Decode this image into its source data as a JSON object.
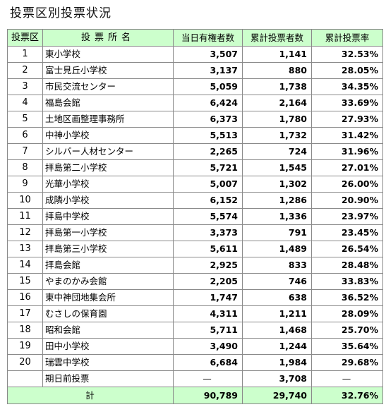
{
  "title": "投票区別投票状況",
  "headers": {
    "no": "投票区",
    "name": "投票所名",
    "registered": "当日有権者数",
    "voters": "累計投票者数",
    "rate": "累計投票率"
  },
  "rows": [
    {
      "no": "1",
      "name": "東小学校",
      "registered": "3,507",
      "voters": "1,141",
      "rate": "32.53%"
    },
    {
      "no": "2",
      "name": "富士見丘小学校",
      "registered": "3,137",
      "voters": "880",
      "rate": "28.05%"
    },
    {
      "no": "3",
      "name": "市民交流センター",
      "registered": "5,059",
      "voters": "1,738",
      "rate": "34.35%"
    },
    {
      "no": "4",
      "name": "福島会館",
      "registered": "6,424",
      "voters": "2,164",
      "rate": "33.69%"
    },
    {
      "no": "5",
      "name": "土地区画整理事務所",
      "registered": "6,373",
      "voters": "1,780",
      "rate": "27.93%"
    },
    {
      "no": "6",
      "name": "中神小学校",
      "registered": "5,513",
      "voters": "1,732",
      "rate": "31.42%"
    },
    {
      "no": "7",
      "name": "シルバー人材センター",
      "registered": "2,265",
      "voters": "724",
      "rate": "31.96%"
    },
    {
      "no": "8",
      "name": "拝島第二小学校",
      "registered": "5,721",
      "voters": "1,545",
      "rate": "27.01%"
    },
    {
      "no": "9",
      "name": "光華小学校",
      "registered": "5,007",
      "voters": "1,302",
      "rate": "26.00%"
    },
    {
      "no": "10",
      "name": "成隣小学校",
      "registered": "6,152",
      "voters": "1,286",
      "rate": "20.90%"
    },
    {
      "no": "11",
      "name": "拝島中学校",
      "registered": "5,574",
      "voters": "1,336",
      "rate": "23.97%"
    },
    {
      "no": "12",
      "name": "拝島第一小学校",
      "registered": "3,373",
      "voters": "791",
      "rate": "23.45%"
    },
    {
      "no": "13",
      "name": "拝島第三小学校",
      "registered": "5,611",
      "voters": "1,489",
      "rate": "26.54%"
    },
    {
      "no": "14",
      "name": "拝島会館",
      "registered": "2,925",
      "voters": "833",
      "rate": "28.48%"
    },
    {
      "no": "15",
      "name": "やまのかみ会館",
      "registered": "2,205",
      "voters": "746",
      "rate": "33.83%"
    },
    {
      "no": "16",
      "name": "東中神団地集会所",
      "registered": "1,747",
      "voters": "638",
      "rate": "36.52%"
    },
    {
      "no": "17",
      "name": "むさしの保育園",
      "registered": "4,311",
      "voters": "1,211",
      "rate": "28.09%"
    },
    {
      "no": "18",
      "name": "昭和会館",
      "registered": "5,711",
      "voters": "1,468",
      "rate": "25.70%"
    },
    {
      "no": "19",
      "name": "田中小学校",
      "registered": "3,490",
      "voters": "1,244",
      "rate": "35.64%"
    },
    {
      "no": "20",
      "name": "瑞雲中学校",
      "registered": "6,684",
      "voters": "1,984",
      "rate": "29.68%"
    }
  ],
  "early": {
    "no": "",
    "name": "期日前投票",
    "registered": "—",
    "voters": "3,708",
    "rate": "—"
  },
  "total": {
    "label": "計",
    "registered": "90,789",
    "voters": "29,740",
    "rate": "32.76%"
  }
}
